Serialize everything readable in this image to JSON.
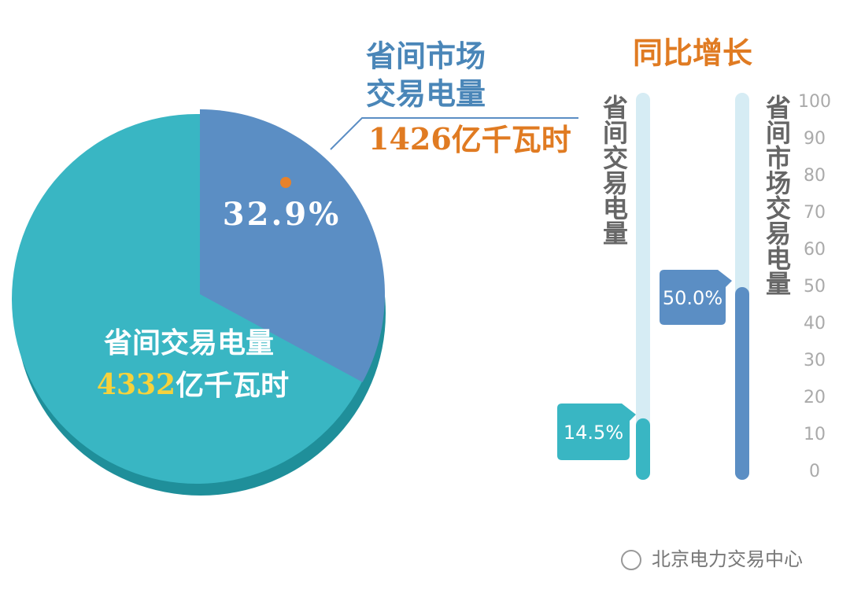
{
  "chart_data": [
    {
      "type": "pie",
      "total": {
        "label": "省间交易电量",
        "value": 4332,
        "unit": "亿千瓦时"
      },
      "slice": {
        "label_lines": [
          "省间市场",
          "交易电量"
        ],
        "value": 1426,
        "unit": "亿千瓦时",
        "share": 32.9,
        "share_label": "32.9%"
      },
      "colors": {
        "disk": "#39b6c3",
        "slice": "#5b8ec4"
      }
    },
    {
      "type": "bar",
      "title": "同比增长",
      "categories": [
        "省间交易电量",
        "省间市场交易电量"
      ],
      "series": [
        {
          "colors": [
            "#39b6c3",
            "#5b8ec4"
          ],
          "values": [
            14.5,
            50.0
          ],
          "value_labels": [
            "14.5%",
            "50.0%"
          ]
        }
      ],
      "ylim": [
        0,
        100
      ],
      "yticks": [
        0,
        10,
        20,
        30,
        40,
        50,
        60,
        70,
        80,
        90,
        100
      ]
    }
  ],
  "watermark": "北京电力交易中心"
}
